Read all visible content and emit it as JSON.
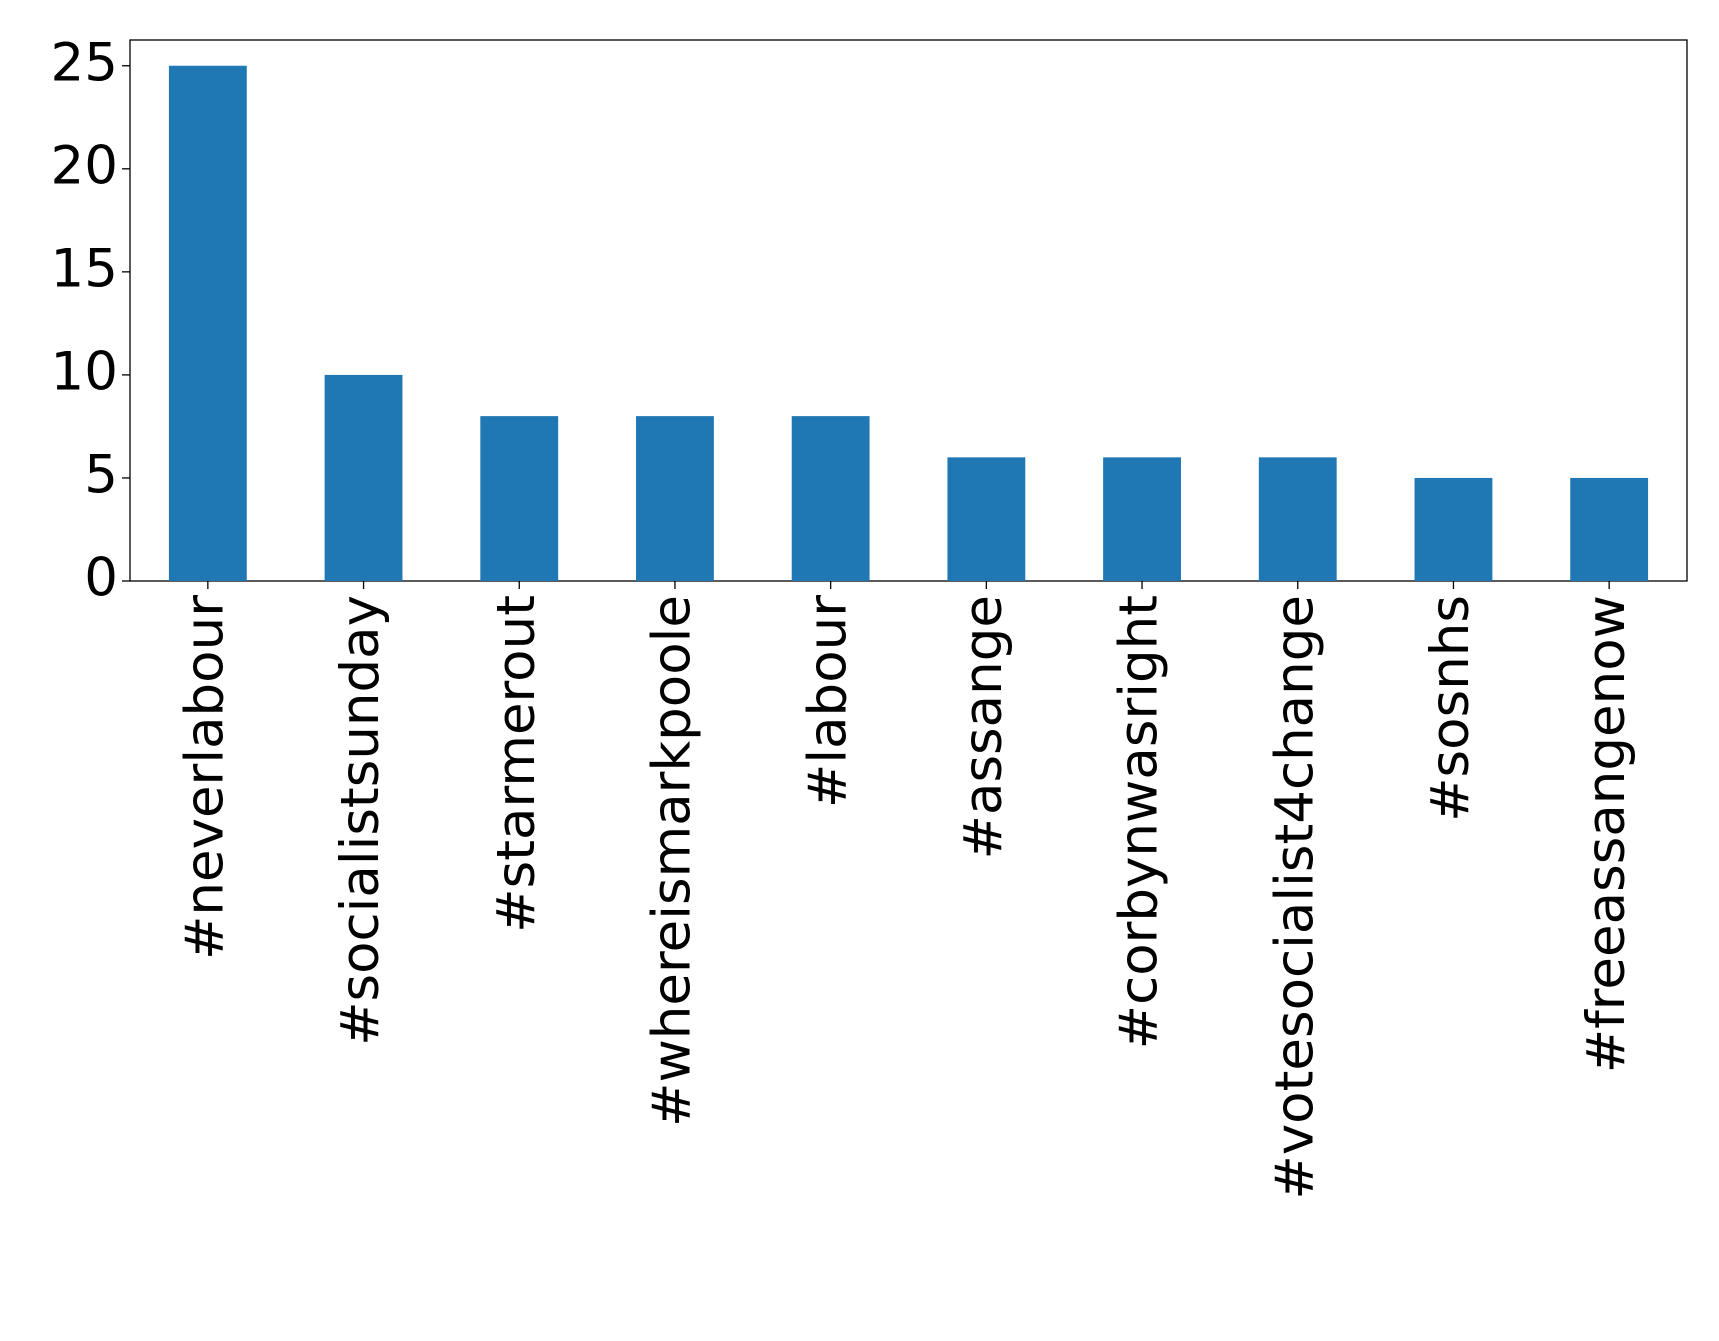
{
  "chart_data": {
    "type": "bar",
    "categories": [
      "#neverlabour",
      "#socialistsunday",
      "#starmerout",
      "#whereismarkpoole",
      "#labour",
      "#assange",
      "#corbynwasright",
      "#votesocialist4change",
      "#sosnhs",
      "#freeassangenow"
    ],
    "values": [
      25,
      10,
      8,
      8,
      8,
      6,
      6,
      6,
      5,
      5
    ],
    "color": "#1f77b4",
    "ylim": [
      0,
      26.25
    ],
    "yticks": [
      0,
      5,
      10,
      15,
      20,
      25
    ],
    "grid": false
  }
}
